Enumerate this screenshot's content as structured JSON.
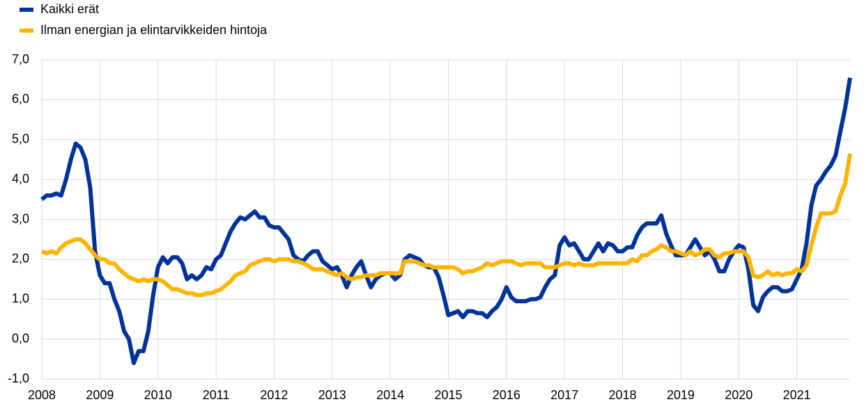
{
  "chart_data": {
    "type": "line",
    "categories": [
      "2008",
      null,
      null,
      null,
      null,
      null,
      null,
      null,
      null,
      null,
      null,
      null,
      "2009",
      null,
      null,
      null,
      null,
      null,
      null,
      null,
      null,
      null,
      null,
      null,
      "2010",
      null,
      null,
      null,
      null,
      null,
      null,
      null,
      null,
      null,
      null,
      null,
      "2011",
      null,
      null,
      null,
      null,
      null,
      null,
      null,
      null,
      null,
      null,
      null,
      "2012",
      null,
      null,
      null,
      null,
      null,
      null,
      null,
      null,
      null,
      null,
      null,
      "2013",
      null,
      null,
      null,
      null,
      null,
      null,
      null,
      null,
      null,
      null,
      null,
      "2014",
      null,
      null,
      null,
      null,
      null,
      null,
      null,
      null,
      null,
      null,
      null,
      "2015",
      null,
      null,
      null,
      null,
      null,
      null,
      null,
      null,
      null,
      null,
      null,
      "2016",
      null,
      null,
      null,
      null,
      null,
      null,
      null,
      null,
      null,
      null,
      null,
      "2017",
      null,
      null,
      null,
      null,
      null,
      null,
      null,
      null,
      null,
      null,
      null,
      "2018",
      null,
      null,
      null,
      null,
      null,
      null,
      null,
      null,
      null,
      null,
      null,
      "2019",
      null,
      null,
      null,
      null,
      null,
      null,
      null,
      null,
      null,
      null,
      null,
      "2020",
      null,
      null,
      null,
      null,
      null,
      null,
      null,
      null,
      null,
      null,
      null,
      "2021",
      null,
      null,
      null,
      null,
      null,
      null,
      null,
      null,
      null,
      null,
      null
    ],
    "series": [
      {
        "name": "Kaikki erät",
        "color": "#003399",
        "values": [
          3.5,
          3.6,
          3.6,
          3.65,
          3.6,
          4.0,
          4.5,
          4.9,
          4.8,
          4.5,
          3.8,
          2.2,
          1.6,
          1.4,
          1.4,
          1.0,
          0.7,
          0.2,
          0.0,
          -0.6,
          -0.3,
          -0.3,
          0.2,
          1.1,
          1.8,
          2.05,
          1.9,
          2.05,
          2.05,
          1.9,
          1.5,
          1.6,
          1.5,
          1.6,
          1.8,
          1.75,
          2.0,
          2.1,
          2.4,
          2.7,
          2.9,
          3.05,
          3.0,
          3.1,
          3.2,
          3.05,
          3.05,
          2.85,
          2.8,
          2.8,
          2.65,
          2.5,
          2.1,
          2.0,
          1.95,
          2.1,
          2.2,
          2.2,
          1.95,
          1.85,
          1.75,
          1.8,
          1.6,
          1.3,
          1.6,
          1.8,
          1.95,
          1.6,
          1.3,
          1.5,
          1.6,
          1.65,
          1.65,
          1.5,
          1.6,
          2.0,
          2.1,
          2.05,
          2.0,
          1.85,
          1.8,
          1.8,
          1.55,
          1.1,
          0.6,
          0.65,
          0.7,
          0.55,
          0.7,
          0.7,
          0.65,
          0.65,
          0.55,
          0.7,
          0.8,
          1.0,
          1.3,
          1.05,
          0.95,
          0.95,
          0.95,
          1.0,
          1.0,
          1.05,
          1.3,
          1.5,
          1.6,
          2.35,
          2.55,
          2.35,
          2.4,
          2.2,
          2.0,
          2.0,
          2.2,
          2.4,
          2.2,
          2.4,
          2.35,
          2.2,
          2.2,
          2.3,
          2.3,
          2.6,
          2.8,
          2.9,
          2.9,
          2.9,
          3.1,
          2.65,
          2.35,
          2.1,
          2.1,
          2.1,
          2.3,
          2.5,
          2.3,
          2.1,
          2.2,
          2.0,
          1.7,
          1.7,
          2.0,
          2.2,
          2.35,
          2.3,
          1.75,
          0.85,
          0.7,
          1.05,
          1.2,
          1.3,
          1.3,
          1.2,
          1.2,
          1.25,
          1.5,
          1.75,
          2.4,
          3.35,
          3.85,
          4.0,
          4.2,
          4.35,
          4.6,
          5.2,
          5.8,
          6.55
        ]
      },
      {
        "name": "Ilman energian ja elintarvikkeiden hintoja",
        "color": "#ffb400",
        "values": [
          2.2,
          2.15,
          2.2,
          2.15,
          2.3,
          2.4,
          2.45,
          2.5,
          2.5,
          2.4,
          2.25,
          2.1,
          2.0,
          2.0,
          1.9,
          1.9,
          1.75,
          1.65,
          1.55,
          1.5,
          1.45,
          1.5,
          1.45,
          1.5,
          1.5,
          1.45,
          1.35,
          1.25,
          1.25,
          1.2,
          1.15,
          1.15,
          1.1,
          1.1,
          1.15,
          1.15,
          1.2,
          1.25,
          1.35,
          1.45,
          1.6,
          1.65,
          1.7,
          1.85,
          1.9,
          1.95,
          2.0,
          2.0,
          1.95,
          2.0,
          2.0,
          2.0,
          1.95,
          1.95,
          1.9,
          1.85,
          1.75,
          1.75,
          1.75,
          1.7,
          1.65,
          1.6,
          1.65,
          1.55,
          1.5,
          1.55,
          1.55,
          1.6,
          1.6,
          1.6,
          1.65,
          1.65,
          1.65,
          1.65,
          1.65,
          1.95,
          1.95,
          1.95,
          1.9,
          1.85,
          1.85,
          1.8,
          1.8,
          1.8,
          1.8,
          1.8,
          1.75,
          1.65,
          1.7,
          1.7,
          1.75,
          1.8,
          1.9,
          1.85,
          1.9,
          1.95,
          1.95,
          1.95,
          1.9,
          1.85,
          1.9,
          1.9,
          1.9,
          1.9,
          1.8,
          1.8,
          1.8,
          1.85,
          1.9,
          1.9,
          1.85,
          1.9,
          1.85,
          1.85,
          1.85,
          1.9,
          1.9,
          1.9,
          1.9,
          1.9,
          1.9,
          1.9,
          2.0,
          1.95,
          2.1,
          2.1,
          2.2,
          2.25,
          2.35,
          2.3,
          2.2,
          2.2,
          2.15,
          2.1,
          2.2,
          2.1,
          2.15,
          2.25,
          2.25,
          2.1,
          2.05,
          2.15,
          2.15,
          2.2,
          2.2,
          2.2,
          2.05,
          1.6,
          1.55,
          1.6,
          1.7,
          1.6,
          1.65,
          1.6,
          1.65,
          1.65,
          1.75,
          1.7,
          1.85,
          2.35,
          2.8,
          3.15,
          3.15,
          3.15,
          3.2,
          3.6,
          3.9,
          4.65
        ]
      }
    ],
    "ylim": [
      -1,
      7
    ],
    "yticks": [
      {
        "value": -1,
        "label": "-1,0"
      },
      {
        "value": 0,
        "label": "0,0"
      },
      {
        "value": 1,
        "label": "1,0"
      },
      {
        "value": 2,
        "label": "2,0"
      },
      {
        "value": 3,
        "label": "3,0"
      },
      {
        "value": 4,
        "label": "4,0"
      },
      {
        "value": 5,
        "label": "5,0"
      },
      {
        "value": 6,
        "label": "6,0"
      },
      {
        "value": 7,
        "label": "7,0"
      }
    ],
    "grid": true
  }
}
